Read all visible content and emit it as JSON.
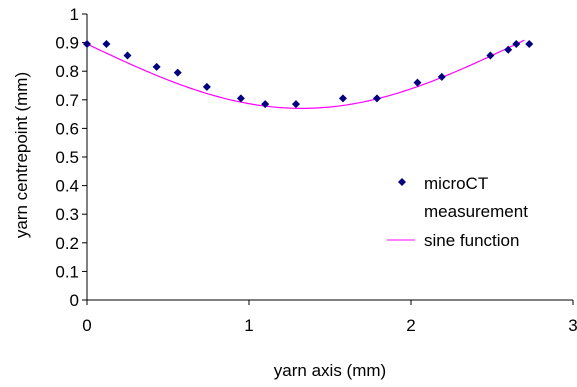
{
  "chart_data": {
    "type": "scatter",
    "title": "",
    "xlabel": "yarn axis (mm)",
    "ylabel": "yarn centrepoint (mm)",
    "xlim": [
      0,
      3
    ],
    "ylim": [
      0,
      1
    ],
    "x_ticks": [
      "0",
      "1",
      "2",
      "3"
    ],
    "y_ticks": [
      "0",
      "0.1",
      "0.2",
      "0.3",
      "0.4",
      "0.5",
      "0.6",
      "0.7",
      "0.8",
      "0.9",
      "1"
    ],
    "grid": false,
    "legend_position": "right",
    "series": [
      {
        "name": "microCT measurement",
        "kind": "scatter",
        "marker": "diamond",
        "color": "#000080",
        "points": [
          {
            "x": 0.0,
            "y": 0.895
          },
          {
            "x": 0.12,
            "y": 0.895
          },
          {
            "x": 0.25,
            "y": 0.855
          },
          {
            "x": 0.43,
            "y": 0.815
          },
          {
            "x": 0.56,
            "y": 0.795
          },
          {
            "x": 0.74,
            "y": 0.745
          },
          {
            "x": 0.95,
            "y": 0.705
          },
          {
            "x": 1.1,
            "y": 0.685
          },
          {
            "x": 1.29,
            "y": 0.685
          },
          {
            "x": 1.58,
            "y": 0.705
          },
          {
            "x": 1.79,
            "y": 0.705
          },
          {
            "x": 2.04,
            "y": 0.76
          },
          {
            "x": 2.19,
            "y": 0.78
          },
          {
            "x": 2.49,
            "y": 0.855
          },
          {
            "x": 2.6,
            "y": 0.875
          },
          {
            "x": 2.65,
            "y": 0.895
          },
          {
            "x": 2.73,
            "y": 0.895
          }
        ]
      },
      {
        "name": "sine function",
        "kind": "line",
        "color": "#FF00FF",
        "curve": {
          "baseline": 0.895,
          "amplitude": 0.225,
          "period": 5.3,
          "x_start": 0.0,
          "x_end": 2.7
        }
      }
    ]
  }
}
